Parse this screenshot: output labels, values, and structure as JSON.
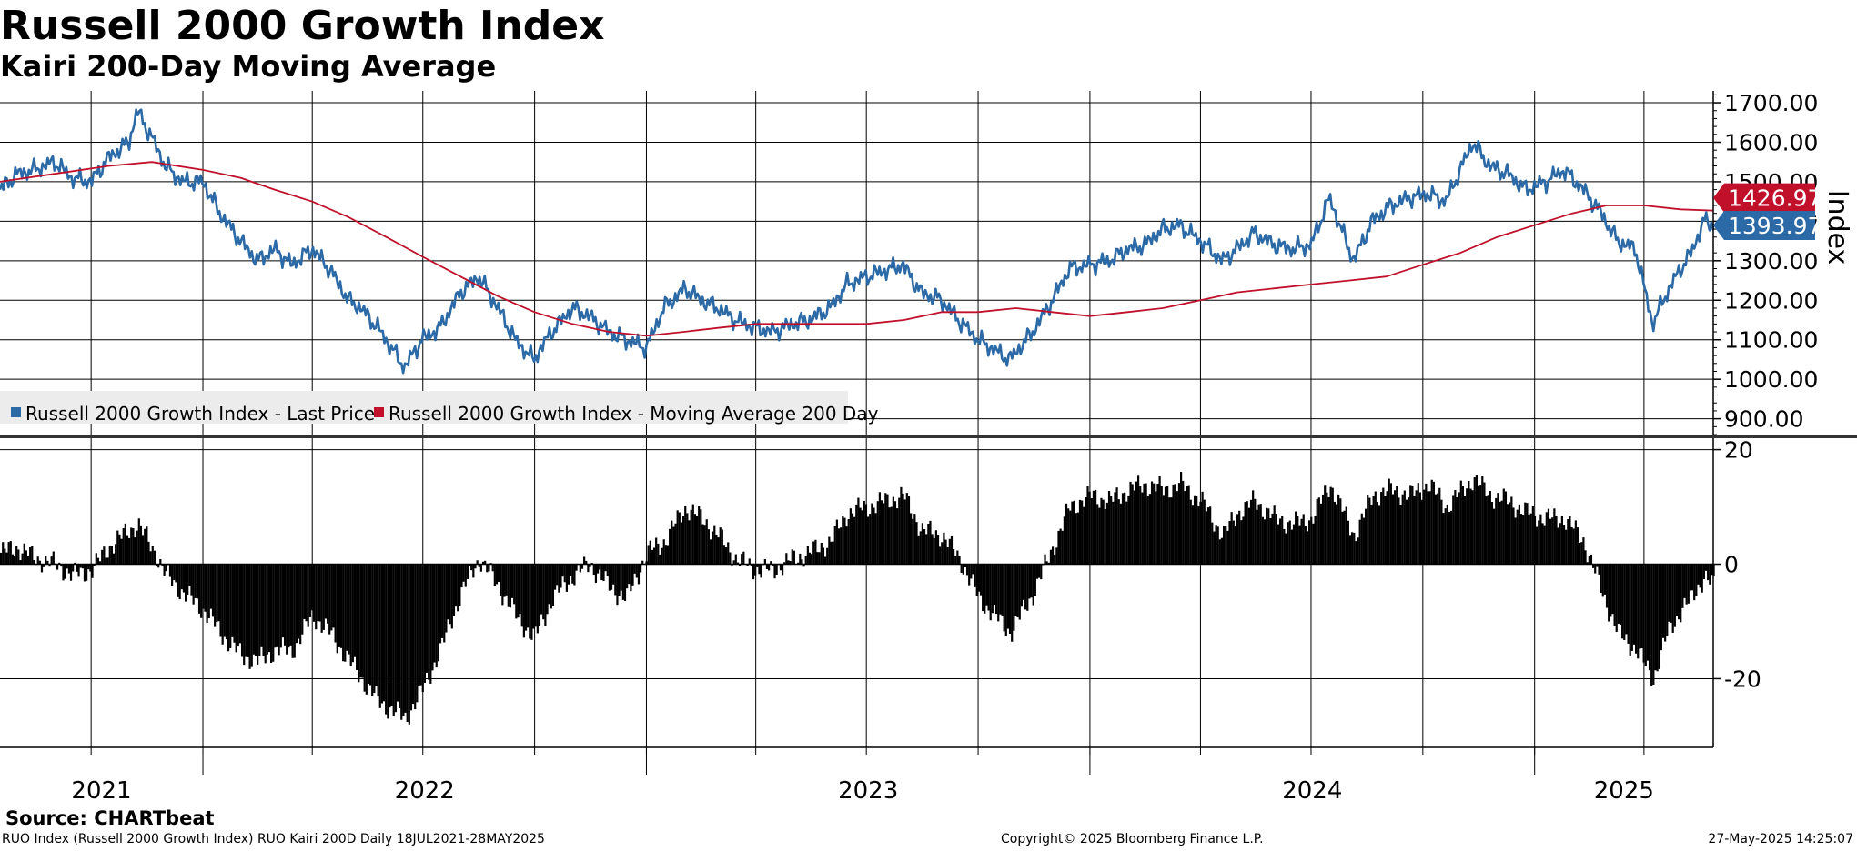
{
  "header": {
    "title": "Russell 2000 Growth Index",
    "subtitle": "Kairi 200-Day Moving Average"
  },
  "footer": {
    "source": "Source:  CHARTbeat",
    "security": "RUO Index (Russell 2000 Growth Index) RUO Kairi 200D  Daily 18JUL2021-28MAY2025",
    "copyright": "Copyright© 2025 Bloomberg Finance L.P.",
    "timestamp": "27-May-2025 14:25:07"
  },
  "colors": {
    "price": "#2b6aa6",
    "moving_average": "#c0102a",
    "kairi": "#000000",
    "grid": "#000000"
  },
  "chart_data": [
    {
      "type": "line",
      "ylabel": "Index",
      "ylim": [
        860,
        1730
      ],
      "yticks": [
        "1700.00",
        "1600.00",
        "1500.00",
        "1400.00",
        "1300.00",
        "1200.00",
        "1100.00",
        "1000.00",
        "900.00"
      ],
      "ytick_values": [
        1700,
        1600,
        1500,
        1400,
        1300,
        1200,
        1100,
        1000,
        900
      ],
      "xlim": [
        "2021-07-18",
        "2025-05-28"
      ],
      "x_labels": [
        "2021",
        "2022",
        "2023",
        "2024",
        "2025"
      ],
      "legend_position": "bottom-left",
      "grid": true,
      "last_value_labels": [
        {
          "series": "Russell 2000 Growth Index - Last Price",
          "text": "1393.97"
        },
        {
          "series": "Russell 2000 Growth Index - Moving Average 200 Day",
          "text": "1426.97"
        }
      ],
      "series": [
        {
          "name": "Russell 2000 Growth Index - Last Price",
          "color": "#2b6aa6",
          "x": [
            "2021-07-18",
            "2021-08-01",
            "2021-08-15",
            "2021-09-01",
            "2021-09-15",
            "2021-10-01",
            "2021-10-15",
            "2021-11-01",
            "2021-11-08",
            "2021-11-22",
            "2021-12-01",
            "2021-12-15",
            "2022-01-01",
            "2022-01-15",
            "2022-02-01",
            "2022-02-15",
            "2022-03-01",
            "2022-03-15",
            "2022-04-01",
            "2022-04-15",
            "2022-05-01",
            "2022-05-11",
            "2022-05-25",
            "2022-06-16",
            "2022-06-30",
            "2022-07-15",
            "2022-08-01",
            "2022-08-16",
            "2022-09-01",
            "2022-09-15",
            "2022-09-30",
            "2022-10-15",
            "2022-11-01",
            "2022-11-15",
            "2022-12-01",
            "2022-12-15",
            "2023-01-01",
            "2023-01-15",
            "2023-02-02",
            "2023-02-15",
            "2023-03-01",
            "2023-03-15",
            "2023-04-01",
            "2023-04-15",
            "2023-05-01",
            "2023-05-15",
            "2023-06-01",
            "2023-06-15",
            "2023-07-01",
            "2023-07-31",
            "2023-08-15",
            "2023-09-01",
            "2023-09-15",
            "2023-10-01",
            "2023-10-27",
            "2023-11-15",
            "2023-12-01",
            "2023-12-15",
            "2024-01-01",
            "2024-01-17",
            "2024-02-01",
            "2024-02-15",
            "2024-03-01",
            "2024-03-15",
            "2024-04-01",
            "2024-04-19",
            "2024-05-01",
            "2024-05-15",
            "2024-06-01",
            "2024-06-15",
            "2024-07-01",
            "2024-07-16",
            "2024-08-05",
            "2024-08-20",
            "2024-09-05",
            "2024-09-20",
            "2024-10-05",
            "2024-10-20",
            "2024-11-11",
            "2024-11-25",
            "2024-12-10",
            "2024-12-25",
            "2025-01-10",
            "2025-01-25",
            "2025-02-10",
            "2025-02-25",
            "2025-03-10",
            "2025-03-25",
            "2025-04-08",
            "2025-04-20",
            "2025-05-01",
            "2025-05-10",
            "2025-05-20",
            "2025-05-28"
          ],
          "y": [
            1480,
            1520,
            1530,
            1550,
            1510,
            1500,
            1560,
            1600,
            1680,
            1600,
            1540,
            1500,
            1500,
            1420,
            1350,
            1300,
            1330,
            1290,
            1330,
            1280,
            1200,
            1180,
            1130,
            1030,
            1100,
            1130,
            1220,
            1260,
            1180,
            1100,
            1050,
            1120,
            1180,
            1160,
            1120,
            1100,
            1080,
            1180,
            1230,
            1200,
            1180,
            1150,
            1130,
            1120,
            1140,
            1150,
            1180,
            1240,
            1260,
            1290,
            1220,
            1200,
            1150,
            1100,
            1050,
            1120,
            1200,
            1280,
            1290,
            1300,
            1330,
            1340,
            1380,
            1390,
            1350,
            1300,
            1330,
            1370,
            1340,
            1330,
            1340,
            1460,
            1300,
            1400,
            1440,
            1460,
            1470,
            1450,
            1600,
            1540,
            1520,
            1480,
            1500,
            1530,
            1480,
            1420,
            1350,
            1330,
            1140,
            1220,
            1280,
            1320,
            1400,
            1394
          ]
        },
        {
          "name": "Russell 2000 Growth Index - Moving Average 200 Day",
          "color": "#c0102a",
          "x": [
            "2021-07-18",
            "2021-09-01",
            "2021-10-15",
            "2021-11-20",
            "2022-01-01",
            "2022-02-01",
            "2022-03-01",
            "2022-04-01",
            "2022-05-01",
            "2022-06-01",
            "2022-07-01",
            "2022-08-01",
            "2022-09-01",
            "2022-10-01",
            "2022-11-01",
            "2022-12-01",
            "2023-01-01",
            "2023-02-01",
            "2023-03-01",
            "2023-04-01",
            "2023-05-01",
            "2023-06-01",
            "2023-07-01",
            "2023-08-01",
            "2023-09-01",
            "2023-10-01",
            "2023-11-01",
            "2023-12-01",
            "2024-01-01",
            "2024-02-01",
            "2024-03-01",
            "2024-04-01",
            "2024-05-01",
            "2024-06-01",
            "2024-07-01",
            "2024-08-01",
            "2024-09-01",
            "2024-10-01",
            "2024-11-01",
            "2024-12-01",
            "2025-01-01",
            "2025-02-01",
            "2025-03-01",
            "2025-04-01",
            "2025-05-01",
            "2025-05-28"
          ],
          "y": [
            1500,
            1520,
            1540,
            1550,
            1530,
            1510,
            1480,
            1450,
            1410,
            1360,
            1310,
            1260,
            1210,
            1170,
            1140,
            1120,
            1110,
            1120,
            1130,
            1140,
            1140,
            1140,
            1140,
            1150,
            1170,
            1170,
            1180,
            1170,
            1160,
            1170,
            1180,
            1200,
            1220,
            1230,
            1240,
            1250,
            1260,
            1290,
            1320,
            1360,
            1390,
            1420,
            1440,
            1440,
            1430,
            1427
          ]
        }
      ]
    },
    {
      "type": "bar",
      "series_name": "RUO Kairi 200D",
      "color": "#000000",
      "ylim": [
        -32,
        22
      ],
      "yticks": [
        "20",
        "0",
        "-20"
      ],
      "ytick_values": [
        20,
        0,
        -20
      ],
      "xlim": [
        "2021-07-18",
        "2025-05-28"
      ],
      "grid": true,
      "x": [
        "2021-07-18",
        "2021-08-01",
        "2021-08-15",
        "2021-09-01",
        "2021-09-15",
        "2021-10-01",
        "2021-10-15",
        "2021-11-01",
        "2021-11-08",
        "2021-11-22",
        "2021-12-01",
        "2021-12-15",
        "2022-01-01",
        "2022-01-15",
        "2022-02-01",
        "2022-02-15",
        "2022-03-01",
        "2022-03-15",
        "2022-04-01",
        "2022-04-15",
        "2022-05-01",
        "2022-05-11",
        "2022-05-25",
        "2022-06-16",
        "2022-06-30",
        "2022-07-15",
        "2022-08-01",
        "2022-08-16",
        "2022-09-01",
        "2022-09-15",
        "2022-09-30",
        "2022-10-15",
        "2022-11-01",
        "2022-11-15",
        "2022-12-01",
        "2022-12-15",
        "2023-01-01",
        "2023-01-15",
        "2023-02-02",
        "2023-02-15",
        "2023-03-01",
        "2023-03-15",
        "2023-04-01",
        "2023-04-15",
        "2023-05-01",
        "2023-05-15",
        "2023-06-01",
        "2023-06-15",
        "2023-07-01",
        "2023-07-31",
        "2023-08-15",
        "2023-09-01",
        "2023-09-15",
        "2023-10-01",
        "2023-10-27",
        "2023-11-15",
        "2023-12-01",
        "2023-12-15",
        "2024-01-01",
        "2024-01-17",
        "2024-02-01",
        "2024-02-15",
        "2024-03-01",
        "2024-03-15",
        "2024-04-01",
        "2024-04-19",
        "2024-05-01",
        "2024-05-15",
        "2024-06-01",
        "2024-06-15",
        "2024-07-01",
        "2024-07-16",
        "2024-08-05",
        "2024-08-20",
        "2024-09-05",
        "2024-09-20",
        "2024-10-05",
        "2024-10-20",
        "2024-11-11",
        "2024-11-25",
        "2024-12-10",
        "2024-12-25",
        "2025-01-10",
        "2025-01-25",
        "2025-02-10",
        "2025-02-25",
        "2025-03-10",
        "2025-03-25",
        "2025-04-08",
        "2025-04-20",
        "2025-05-01",
        "2025-05-10",
        "2025-05-20",
        "2025-05-28"
      ],
      "values": [
        2,
        3,
        1,
        0,
        -2,
        -1,
        3,
        6,
        7,
        2,
        -2,
        -5,
        -8,
        -12,
        -16,
        -17,
        -15,
        -15,
        -9,
        -12,
        -17,
        -20,
        -24,
        -27,
        -22,
        -15,
        -5,
        1,
        -4,
        -9,
        -13,
        -6,
        -2,
        0,
        -4,
        -6,
        2,
        4,
        10,
        8,
        5,
        1,
        -1,
        -1,
        1,
        2,
        4,
        9,
        10,
        12,
        6,
        5,
        1,
        -6,
        -12,
        -5,
        3,
        10,
        12,
        11,
        13,
        14,
        13,
        14,
        11,
        5,
        9,
        11,
        8,
        7,
        8,
        14,
        5,
        12,
        13,
        12,
        14,
        10,
        15,
        12,
        11,
        9,
        8,
        8,
        4,
        -5,
        -12,
        -15,
        -20,
        -12,
        -8,
        -6,
        -2,
        -4
      ]
    }
  ],
  "legend": {
    "items": [
      {
        "label": "Russell 2000 Growth Index - Last Price",
        "color": "#2b6aa6"
      },
      {
        "label": "Russell 2000 Growth Index - Moving Average 200 Day",
        "color": "#c0102a"
      }
    ]
  }
}
